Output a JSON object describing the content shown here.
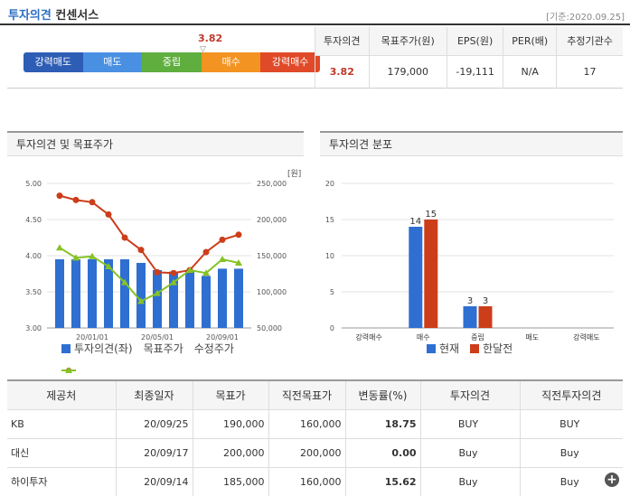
{
  "header": {
    "title_main": "투자의견",
    "title_sub": "컨센서스",
    "base_date": "[기준:2020.09.25]"
  },
  "consensus": {
    "scale": [
      "강력매도",
      "매도",
      "중립",
      "매수",
      "강력매수"
    ],
    "marker_value": "3.82",
    "marker_glyph": "▽",
    "columns": [
      "투자의견",
      "목표주가(원)",
      "EPS(원)",
      "PER(배)",
      "추정기관수"
    ],
    "values": [
      "3.82",
      "179,000",
      "-19,111",
      "N/A",
      "17"
    ]
  },
  "left_panel": {
    "title": "투자의견 및 목표주가",
    "unit": "[원]",
    "legend": [
      "투자의견(좌)",
      "목표주가",
      "수정주가"
    ]
  },
  "right_panel": {
    "title": "투자의견 분포",
    "legend": [
      "현재",
      "한달전"
    ]
  },
  "chart_data": [
    {
      "type": "bar+line",
      "title": "투자의견 및 목표주가",
      "x_ticks": [
        "20/01/01",
        "20/05/01",
        "20/09/01"
      ],
      "y_left_ticks": [
        "5.00",
        "4.50",
        "4.00",
        "3.50",
        "3.00"
      ],
      "y_left_range": [
        3.0,
        5.0
      ],
      "y_right_ticks": [
        "250,000",
        "200,000",
        "150,000",
        "100,000",
        "50,000"
      ],
      "y_right_range": [
        50000,
        250000
      ],
      "series": [
        {
          "name": "투자의견(좌)",
          "kind": "bar",
          "axis": "left",
          "color": "#2e6fd1",
          "values": [
            3.95,
            3.95,
            3.95,
            3.95,
            3.95,
            3.9,
            3.8,
            3.78,
            3.78,
            3.72,
            3.82,
            3.82
          ]
        },
        {
          "name": "목표주가",
          "kind": "line",
          "axis": "right",
          "color": "#cc3d1a",
          "values": [
            233000,
            227000,
            224000,
            207000,
            175000,
            158000,
            127000,
            126000,
            130000,
            155000,
            172000,
            179000
          ]
        },
        {
          "name": "수정주가",
          "kind": "line",
          "axis": "right",
          "color": "#86c226",
          "values": [
            161000,
            147000,
            149000,
            135000,
            113000,
            87000,
            98000,
            113000,
            130000,
            126000,
            145000,
            140000
          ]
        }
      ]
    },
    {
      "type": "bar",
      "title": "투자의견 분포",
      "categories": [
        "강력매수",
        "매수",
        "중립",
        "매도",
        "강력매도"
      ],
      "ylim": [
        0,
        20
      ],
      "y_ticks": [
        "20",
        "15",
        "10",
        "5",
        "0"
      ],
      "series": [
        {
          "name": "현재",
          "color": "#2e6fd1",
          "values": [
            0,
            14,
            3,
            0,
            0
          ]
        },
        {
          "name": "한달전",
          "color": "#cc3d1a",
          "values": [
            0,
            15,
            3,
            0,
            0
          ]
        }
      ]
    }
  ],
  "table": {
    "columns": [
      "제공처",
      "최종일자",
      "목표가",
      "직전목표가",
      "변동률(%)",
      "투자의견",
      "직전투자의견"
    ],
    "rows": [
      [
        "KB",
        "20/09/25",
        "190,000",
        "160,000",
        "18.75",
        "BUY",
        "BUY"
      ],
      [
        "대신",
        "20/09/17",
        "200,000",
        "200,000",
        "0.00",
        "Buy",
        "Buy"
      ],
      [
        "하이투자",
        "20/09/14",
        "185,000",
        "160,000",
        "15.62",
        "Buy",
        "Buy"
      ]
    ]
  },
  "colors": {
    "accent": "#2d6fc4",
    "score": "#c0392b",
    "blue": "#2e6fd1",
    "red": "#cc3d1a",
    "green": "#86c226"
  }
}
